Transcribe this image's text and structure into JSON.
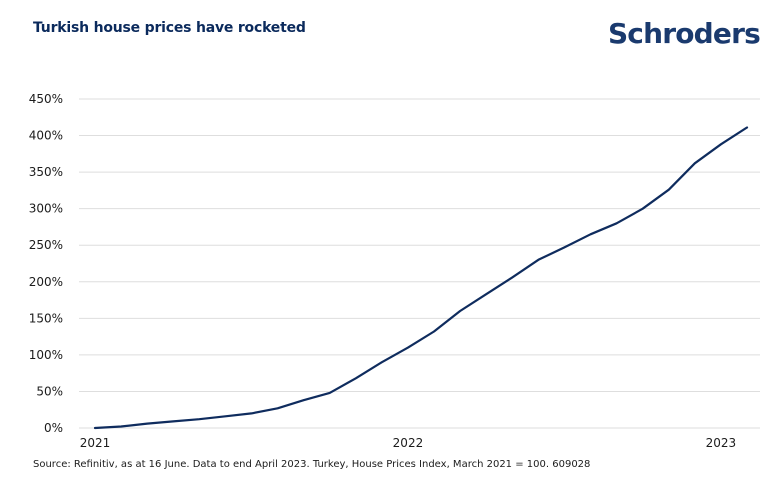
{
  "header": {
    "title": "Turkish house prices have rocketed",
    "brand": "Schroders"
  },
  "footer": {
    "source": "Source: Refinitiv, as at 16 June. Data to end April 2023. Turkey, House Prices Index, March 2021 = 100. 609028"
  },
  "colors": {
    "line": "#0f2c5e",
    "grid": "#dedede",
    "title": "#0b2a5c",
    "brand": "#1a3a6e"
  },
  "chart_data": {
    "type": "line",
    "title": "Turkish house prices have rocketed",
    "xlabel": "",
    "ylabel": "",
    "ylim": [
      0,
      450
    ],
    "yticks": [
      0,
      50,
      100,
      150,
      200,
      250,
      300,
      350,
      400,
      450
    ],
    "ytick_labels": [
      "0%",
      "50%",
      "100%",
      "150%",
      "200%",
      "250%",
      "300%",
      "350%",
      "400%",
      "450%"
    ],
    "xticks": [
      {
        "label": "2021",
        "x": "2021-03"
      },
      {
        "label": "2022",
        "x": "2022-03"
      },
      {
        "label": "2023",
        "x": "2023-03"
      }
    ],
    "grid": true,
    "legend": "none",
    "series": [
      {
        "name": "",
        "x": [
          "2021-03",
          "2021-04",
          "2021-05",
          "2021-06",
          "2021-07",
          "2021-08",
          "2021-09",
          "2021-10",
          "2021-11",
          "2021-12",
          "2022-01",
          "2022-02",
          "2022-03",
          "2022-04",
          "2022-05",
          "2022-06",
          "2022-07",
          "2022-08",
          "2022-09",
          "2022-10",
          "2022-11",
          "2022-12",
          "2023-01",
          "2023-02",
          "2023-03",
          "2023-04"
        ],
        "values": [
          0,
          2,
          6,
          9,
          12,
          16,
          20,
          27,
          38,
          48,
          68,
          90,
          110,
          132,
          160,
          183,
          206,
          230,
          247,
          265,
          280,
          300,
          326,
          362,
          388,
          411
        ]
      }
    ]
  }
}
